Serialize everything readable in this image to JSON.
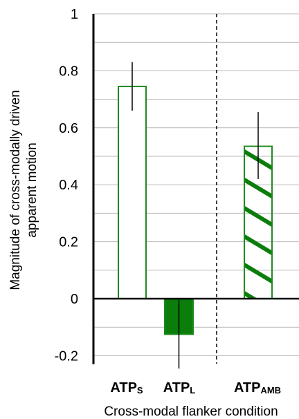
{
  "chart_data": {
    "type": "bar",
    "title": "",
    "xlabel": "Cross-modal flanker condition",
    "ylabel_lines": [
      "Magnitude of cross-modally driven",
      "apparent motion"
    ],
    "ylim": [
      -0.23,
      1.0
    ],
    "yticks": [
      "1",
      "0.8",
      "0.6",
      "0.4",
      "0.2",
      "0",
      "-0.2"
    ],
    "ytick_values": [
      1,
      0.8,
      0.6,
      0.4,
      0.2,
      0,
      -0.2
    ],
    "grid_step": 0.1,
    "grid": true,
    "bars": [
      {
        "label_main": "ATP",
        "label_sub": "S",
        "value": 0.745,
        "err_low": 0.66,
        "err_high": 0.83,
        "style": "outline"
      },
      {
        "label_main": "ATP",
        "label_sub": "L",
        "value": -0.125,
        "err_low": -0.245,
        "err_high": -0.005,
        "style": "solid"
      },
      {
        "label_main": "ATP",
        "label_sub": "AMB",
        "value": 0.535,
        "err_low": 0.42,
        "err_high": 0.655,
        "style": "hatched"
      }
    ],
    "separator_after_category": 2,
    "colors": {
      "bar_edge": "#1f8a1f",
      "bar_fill_solid": "#0a7d0a",
      "hatch": "#0b7d0b",
      "grid": "#b8b8b8",
      "axis": "#000000"
    }
  }
}
